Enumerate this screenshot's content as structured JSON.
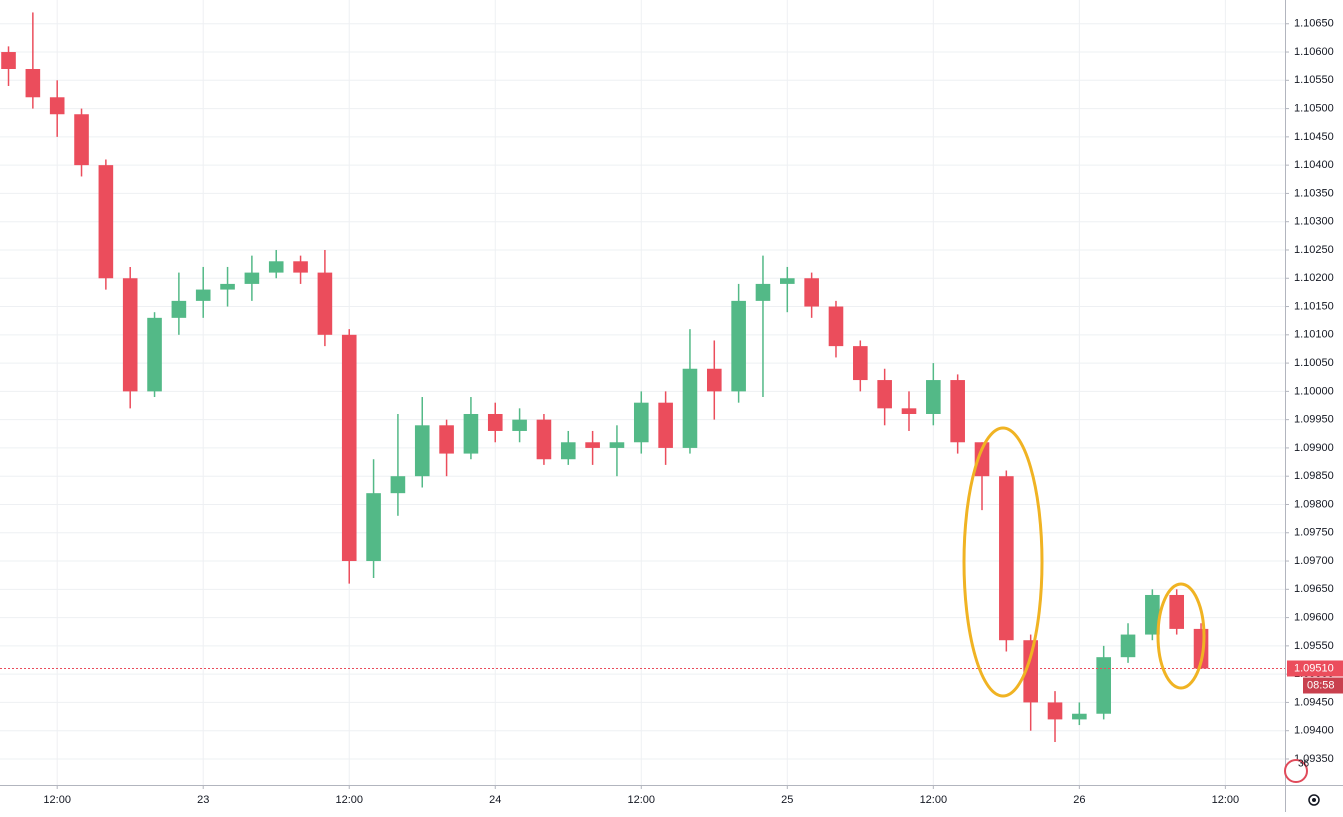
{
  "chart_data": {
    "type": "candlestick",
    "up_color": "#53b987",
    "down_color": "#eb4d5c",
    "grid": true,
    "x": [
      8,
      10,
      12,
      14,
      16,
      18,
      20,
      22,
      24,
      26,
      28,
      30,
      32,
      34,
      36,
      38,
      40,
      42,
      44,
      46,
      48,
      50,
      52,
      54,
      56,
      58,
      60,
      62,
      64,
      66,
      68,
      70,
      72,
      74,
      76,
      78,
      80,
      82,
      84,
      86,
      88,
      90,
      92,
      94,
      96,
      98,
      100,
      102,
      104,
      106
    ],
    "open": [
      1.106,
      1.1057,
      1.1052,
      1.1049,
      1.104,
      1.102,
      1.1,
      1.1013,
      1.1016,
      1.1018,
      1.1019,
      1.1021,
      1.1023,
      1.1021,
      1.101,
      1.097,
      1.0982,
      1.0985,
      1.0994,
      1.0989,
      1.0996,
      1.0993,
      1.0995,
      1.0988,
      1.0991,
      1.099,
      1.0991,
      1.0998,
      1.099,
      1.1004,
      1.1,
      1.1016,
      1.1019,
      1.102,
      1.1015,
      1.1008,
      1.1002,
      1.0997,
      1.0996,
      1.1002,
      1.0991,
      1.0985,
      1.0956,
      1.0945,
      1.0942,
      1.0943,
      1.0953,
      1.0957,
      1.0964,
      1.0958
    ],
    "high": [
      1.1061,
      1.1067,
      1.1055,
      1.105,
      1.1041,
      1.1022,
      1.1014,
      1.1021,
      1.1022,
      1.1022,
      1.1024,
      1.1025,
      1.1024,
      1.1025,
      1.1011,
      1.0988,
      1.0996,
      1.0999,
      1.0995,
      1.0999,
      1.0998,
      1.0997,
      1.0996,
      1.0993,
      1.0993,
      1.0994,
      1.1,
      1.1,
      1.1011,
      1.1009,
      1.1019,
      1.1024,
      1.1022,
      1.1021,
      1.1016,
      1.1009,
      1.1004,
      1.1,
      1.1005,
      1.1003,
      1.0991,
      1.0986,
      1.0957,
      1.0947,
      1.0945,
      1.0955,
      1.0959,
      1.0965,
      1.0965,
      1.0959
    ],
    "low": [
      1.1054,
      1.105,
      1.1045,
      1.1038,
      1.1018,
      1.0997,
      1.0999,
      1.101,
      1.1013,
      1.1015,
      1.1016,
      1.102,
      1.1019,
      1.1008,
      1.0966,
      1.0967,
      1.0978,
      1.0983,
      1.0985,
      1.0988,
      1.0991,
      1.0991,
      1.0987,
      1.0987,
      1.0987,
      1.0985,
      1.0989,
      1.0987,
      1.0989,
      1.0995,
      1.0998,
      1.0999,
      1.1014,
      1.1013,
      1.1006,
      1.1,
      1.0994,
      1.0993,
      1.0994,
      1.0989,
      1.0979,
      1.0954,
      1.094,
      1.0938,
      1.0941,
      1.0942,
      1.0952,
      1.0956,
      1.0957,
      1.0951
    ],
    "close": [
      1.1057,
      1.1052,
      1.1049,
      1.104,
      1.102,
      1.1,
      1.1013,
      1.1016,
      1.1018,
      1.1019,
      1.1021,
      1.1023,
      1.1021,
      1.101,
      1.097,
      1.0982,
      1.0985,
      1.0994,
      1.0989,
      1.0996,
      1.0993,
      1.0995,
      1.0988,
      1.0991,
      1.099,
      1.0991,
      1.0998,
      1.099,
      1.1004,
      1.1,
      1.1016,
      1.1019,
      1.102,
      1.1015,
      1.1008,
      1.1002,
      1.0997,
      1.0996,
      1.1002,
      1.0991,
      1.0985,
      1.0956,
      1.0945,
      1.0942,
      1.0943,
      1.0953,
      1.0957,
      1.0964,
      1.0958,
      1.0951
    ],
    "xlim": [
      7.3,
      112.9
    ],
    "xticks": [
      {
        "value": 12,
        "label": "12:00"
      },
      {
        "value": 24,
        "label": "23"
      },
      {
        "value": 36,
        "label": "12:00"
      },
      {
        "value": 48,
        "label": "24"
      },
      {
        "value": 60,
        "label": "12:00"
      },
      {
        "value": 72,
        "label": "25"
      },
      {
        "value": 84,
        "label": "12:00"
      },
      {
        "value": 96,
        "label": "26"
      },
      {
        "value": 108,
        "label": "12:00"
      }
    ],
    "ylim": [
      1.09304,
      1.10692
    ],
    "yticks": [
      {
        "value": 1.0935,
        "label": "1.09350"
      },
      {
        "value": 1.094,
        "label": "1.09400"
      },
      {
        "value": 1.0945,
        "label": "1.09450"
      },
      {
        "value": 1.095,
        "label": "1.09500"
      },
      {
        "value": 1.0955,
        "label": "1.09550"
      },
      {
        "value": 1.096,
        "label": "1.09600"
      },
      {
        "value": 1.0965,
        "label": "1.09650"
      },
      {
        "value": 1.097,
        "label": "1.09700"
      },
      {
        "value": 1.0975,
        "label": "1.09750"
      },
      {
        "value": 1.098,
        "label": "1.09800"
      },
      {
        "value": 1.0985,
        "label": "1.09850"
      },
      {
        "value": 1.099,
        "label": "1.09900"
      },
      {
        "value": 1.0995,
        "label": "1.09950"
      },
      {
        "value": 1.1,
        "label": "1.10000"
      },
      {
        "value": 1.1005,
        "label": "1.10050"
      },
      {
        "value": 1.101,
        "label": "1.10100"
      },
      {
        "value": 1.1015,
        "label": "1.10150"
      },
      {
        "value": 1.102,
        "label": "1.10200"
      },
      {
        "value": 1.1025,
        "label": "1.10250"
      },
      {
        "value": 1.103,
        "label": "1.10300"
      },
      {
        "value": 1.1035,
        "label": "1.10350"
      },
      {
        "value": 1.104,
        "label": "1.10400"
      },
      {
        "value": 1.1045,
        "label": "1.10450"
      },
      {
        "value": 1.105,
        "label": "1.10500"
      },
      {
        "value": 1.1055,
        "label": "1.10550"
      },
      {
        "value": 1.106,
        "label": "1.10600"
      },
      {
        "value": 1.1065,
        "label": "1.10650"
      }
    ],
    "current_price": {
      "value": 1.0951,
      "label": "1.09510"
    },
    "countdown": "08:58",
    "badge": "36"
  }
}
